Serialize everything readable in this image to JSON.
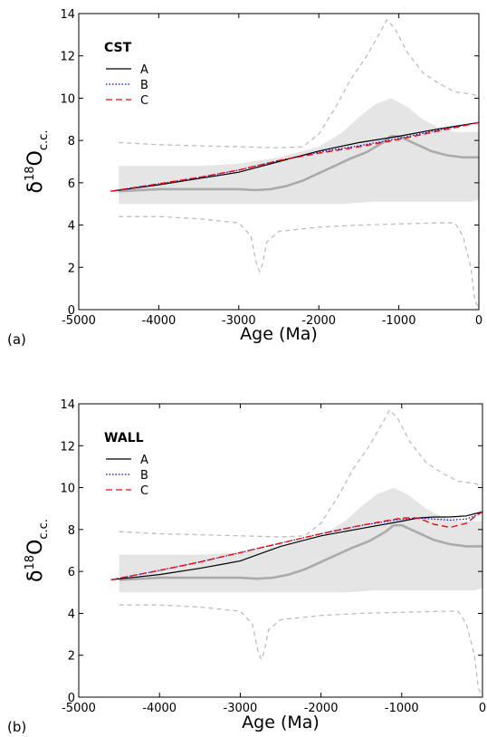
{
  "chart_data": [
    {
      "type": "line",
      "panel_label": "(a)",
      "legend_title": "CST",
      "xlabel": "Age (Ma)",
      "ylabel_main": "δ",
      "ylabel_sup": "18",
      "ylabel_base": "O",
      "ylabel_sub": "c.c.",
      "xlim": [
        -5000,
        0
      ],
      "ylim": [
        0,
        14
      ],
      "xticks": [
        -5000,
        -4000,
        -3000,
        -2000,
        -1000,
        0
      ],
      "yticks": [
        0,
        2,
        4,
        6,
        8,
        10,
        12,
        14
      ],
      "grid": false,
      "legend_position": "top-left",
      "band": {
        "x": [
          -4500,
          -4000,
          -3500,
          -3000,
          -2500,
          -2000,
          -1700,
          -1500,
          -1300,
          -1100,
          -900,
          -700,
          -500,
          -300,
          -100,
          0
        ],
        "upper": [
          6.8,
          6.8,
          6.8,
          6.9,
          7.2,
          7.7,
          8.4,
          9.1,
          9.7,
          10.0,
          9.6,
          9.0,
          8.6,
          8.4,
          8.4,
          8.4
        ],
        "lower": [
          5.0,
          5.0,
          5.0,
          5.0,
          5.0,
          5.0,
          5.0,
          5.05,
          5.1,
          5.1,
          5.1,
          5.1,
          5.1,
          5.1,
          5.1,
          5.2
        ]
      },
      "mean_curve": {
        "x": [
          -4500,
          -4000,
          -3500,
          -3000,
          -2800,
          -2600,
          -2400,
          -2200,
          -2000,
          -1800,
          -1600,
          -1400,
          -1200,
          -1100,
          -1000,
          -800,
          -600,
          -400,
          -200,
          0
        ],
        "y": [
          5.6,
          5.7,
          5.7,
          5.7,
          5.65,
          5.7,
          5.85,
          6.1,
          6.45,
          6.8,
          7.15,
          7.45,
          7.9,
          8.2,
          8.2,
          7.85,
          7.5,
          7.3,
          7.2,
          7.2
        ]
      },
      "envelope_upper": {
        "x": [
          -4500,
          -4000,
          -3500,
          -3000,
          -2500,
          -2200,
          -2000,
          -1800,
          -1600,
          -1400,
          -1250,
          -1150,
          -1050,
          -900,
          -700,
          -500,
          -300,
          -100,
          0
        ],
        "y": [
          7.9,
          7.8,
          7.75,
          7.7,
          7.65,
          7.7,
          8.3,
          9.5,
          10.9,
          12.0,
          13.0,
          13.7,
          13.3,
          12.2,
          11.2,
          10.7,
          10.3,
          10.2,
          10.1
        ]
      },
      "envelope_lower": {
        "x": [
          -4500,
          -4000,
          -3500,
          -3000,
          -2850,
          -2780,
          -2740,
          -2700,
          -2650,
          -2500,
          -2000,
          -1500,
          -1000,
          -500,
          -300,
          -200,
          -100,
          -50,
          0
        ],
        "y": [
          4.4,
          4.4,
          4.3,
          4.1,
          3.5,
          2.2,
          1.8,
          2.2,
          3.2,
          3.7,
          3.9,
          4.0,
          4.05,
          4.1,
          4.1,
          3.5,
          2.0,
          0.4,
          0.1
        ]
      },
      "series": [
        {
          "name": "A",
          "color": "#000000",
          "dash": "solid",
          "x": [
            -4600,
            -4000,
            -3500,
            -3000,
            -2500,
            -2000,
            -1500,
            -1000,
            -500,
            0
          ],
          "y": [
            5.6,
            5.9,
            6.2,
            6.5,
            7.0,
            7.5,
            7.9,
            8.2,
            8.55,
            8.85
          ]
        },
        {
          "name": "B",
          "color": "#0000cc",
          "dash": "dotted",
          "x": [
            -4600,
            -4000,
            -3500,
            -3000,
            -2500,
            -2000,
            -1500,
            -1000,
            -500,
            0
          ],
          "y": [
            5.6,
            5.95,
            6.25,
            6.6,
            7.05,
            7.45,
            7.75,
            8.1,
            8.5,
            8.85
          ]
        },
        {
          "name": "C",
          "color": "#ff0000",
          "dash": "dashed",
          "x": [
            -4600,
            -4000,
            -3500,
            -3000,
            -2500,
            -2000,
            -1500,
            -1000,
            -500,
            0
          ],
          "y": [
            5.6,
            5.95,
            6.25,
            6.6,
            7.05,
            7.4,
            7.7,
            8.05,
            8.45,
            8.85
          ]
        }
      ]
    },
    {
      "type": "line",
      "panel_label": "(b)",
      "legend_title": "WALL",
      "xlabel": "Age (Ma)",
      "ylabel_main": "δ",
      "ylabel_sup": "18",
      "ylabel_base": "O",
      "ylabel_sub": "c.c.",
      "xlim": [
        -5000,
        0
      ],
      "ylim": [
        0,
        14
      ],
      "xticks": [
        -5000,
        -4000,
        -3000,
        -2000,
        -1000,
        0
      ],
      "yticks": [
        0,
        2,
        4,
        6,
        8,
        10,
        12,
        14
      ],
      "grid": false,
      "legend_position": "top-left",
      "band": {
        "x": [
          -4500,
          -4000,
          -3500,
          -3000,
          -2500,
          -2000,
          -1700,
          -1500,
          -1300,
          -1100,
          -900,
          -700,
          -500,
          -300,
          -100,
          0
        ],
        "upper": [
          6.8,
          6.8,
          6.8,
          6.9,
          7.2,
          7.7,
          8.4,
          9.1,
          9.7,
          10.0,
          9.6,
          9.0,
          8.6,
          8.4,
          8.4,
          8.4
        ],
        "lower": [
          5.0,
          5.0,
          5.0,
          5.0,
          5.0,
          5.0,
          5.0,
          5.05,
          5.1,
          5.1,
          5.1,
          5.1,
          5.1,
          5.1,
          5.1,
          5.2
        ]
      },
      "mean_curve": {
        "x": [
          -4500,
          -4000,
          -3500,
          -3000,
          -2800,
          -2600,
          -2400,
          -2200,
          -2000,
          -1800,
          -1600,
          -1400,
          -1200,
          -1100,
          -1000,
          -800,
          -600,
          -400,
          -200,
          0
        ],
        "y": [
          5.6,
          5.7,
          5.7,
          5.7,
          5.65,
          5.7,
          5.85,
          6.1,
          6.45,
          6.8,
          7.15,
          7.45,
          7.9,
          8.2,
          8.2,
          7.85,
          7.5,
          7.3,
          7.2,
          7.2
        ]
      },
      "envelope_upper": {
        "x": [
          -4500,
          -4000,
          -3500,
          -3000,
          -2500,
          -2200,
          -2000,
          -1800,
          -1600,
          -1400,
          -1250,
          -1150,
          -1050,
          -900,
          -700,
          -500,
          -300,
          -100,
          0
        ],
        "y": [
          7.9,
          7.8,
          7.75,
          7.7,
          7.65,
          7.7,
          8.3,
          9.5,
          10.9,
          12.0,
          13.0,
          13.7,
          13.3,
          12.2,
          11.2,
          10.7,
          10.3,
          10.2,
          10.1
        ]
      },
      "envelope_lower": {
        "x": [
          -4500,
          -4000,
          -3500,
          -3000,
          -2850,
          -2780,
          -2740,
          -2700,
          -2650,
          -2500,
          -2000,
          -1500,
          -1000,
          -500,
          -300,
          -200,
          -100,
          -50,
          0
        ],
        "y": [
          4.4,
          4.4,
          4.3,
          4.1,
          3.5,
          2.2,
          1.8,
          2.2,
          3.2,
          3.7,
          3.9,
          4.0,
          4.05,
          4.1,
          4.1,
          3.5,
          2.0,
          0.4,
          0.1
        ]
      },
      "series": [
        {
          "name": "A",
          "color": "#000000",
          "dash": "solid",
          "x": [
            -4600,
            -4000,
            -3500,
            -3000,
            -2500,
            -2000,
            -1500,
            -1000,
            -800,
            -600,
            -400,
            -200,
            -100,
            0
          ],
          "y": [
            5.6,
            5.85,
            6.15,
            6.5,
            7.2,
            7.7,
            8.05,
            8.4,
            8.55,
            8.6,
            8.6,
            8.65,
            8.75,
            8.85
          ]
        },
        {
          "name": "B",
          "color": "#0000cc",
          "dash": "dotted",
          "x": [
            -4600,
            -4000,
            -3500,
            -3000,
            -2500,
            -2000,
            -1500,
            -1000,
            -800,
            -600,
            -400,
            -200,
            -100,
            0
          ],
          "y": [
            5.6,
            6.05,
            6.45,
            6.9,
            7.35,
            7.8,
            8.2,
            8.5,
            8.55,
            8.5,
            8.45,
            8.5,
            8.65,
            8.85
          ]
        },
        {
          "name": "C",
          "color": "#ff0000",
          "dash": "dashed",
          "x": [
            -4600,
            -4000,
            -3500,
            -3000,
            -2500,
            -2000,
            -1500,
            -1000,
            -800,
            -600,
            -400,
            -200,
            -100,
            0
          ],
          "y": [
            5.6,
            6.05,
            6.45,
            6.9,
            7.35,
            7.8,
            8.2,
            8.55,
            8.55,
            8.25,
            8.1,
            8.3,
            8.6,
            8.85
          ]
        }
      ]
    }
  ]
}
